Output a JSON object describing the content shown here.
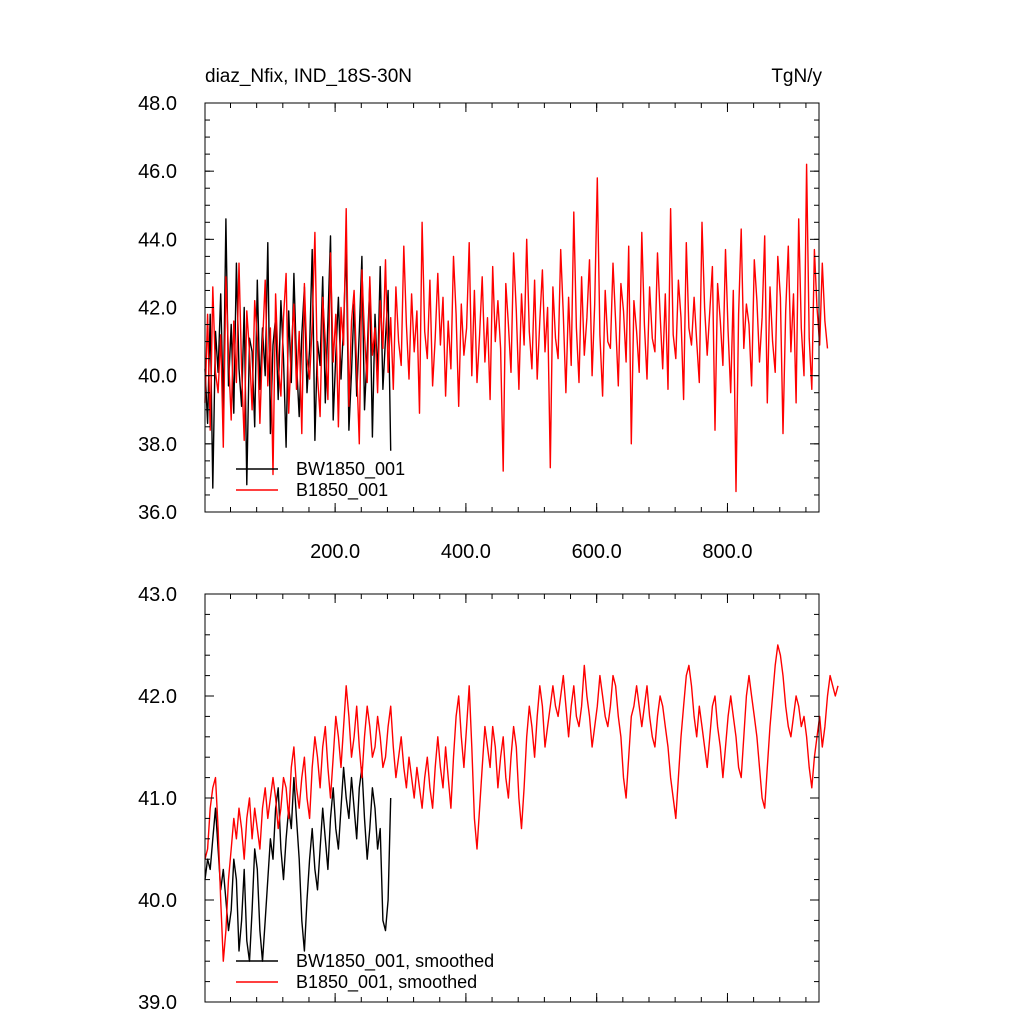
{
  "chart_data": [
    {
      "type": "line",
      "title_left": "diaz_Nfix, IND_18S-30N",
      "title_right": "TgN/y",
      "xlabel": "",
      "ylabel": "",
      "xlim": [
        1,
        940
      ],
      "ylim": [
        36.0,
        48.0
      ],
      "x_ticks": [
        200,
        400,
        600,
        800
      ],
      "x_tick_labels": [
        "200.0",
        "400.0",
        "600.0",
        "800.0"
      ],
      "y_ticks": [
        36,
        38,
        40,
        42,
        44,
        46,
        48
      ],
      "y_tick_labels": [
        "36.0",
        "38.0",
        "40.0",
        "42.0",
        "44.0",
        "46.0",
        "48.0"
      ],
      "legend_position": "bottom-left",
      "series": [
        {
          "name": "BW1850_001",
          "color": "#000000",
          "x_start": 1,
          "x_step": 4,
          "values": [
            40.2,
            38.6,
            41.8,
            36.7,
            41.3,
            40.1,
            42.4,
            39.0,
            44.6,
            39.7,
            41.5,
            38.9,
            43.3,
            40.2,
            39.1,
            42.0,
            36.8,
            41.1,
            40.7,
            38.5,
            42.8,
            39.6,
            41.4,
            40.0,
            43.9,
            38.3,
            40.9,
            41.7,
            39.3,
            42.2,
            40.5,
            37.9,
            41.9,
            39.8,
            43.0,
            40.4,
            38.8,
            41.2,
            42.6,
            39.5,
            40.8,
            43.7,
            38.1,
            41.0,
            40.3,
            42.9,
            39.2,
            41.6,
            44.1,
            38.7,
            40.6,
            42.3,
            39.9,
            41.5,
            43.8,
            38.4,
            40.1,
            42.1,
            39.4,
            41.3,
            43.5,
            39.0,
            40.7,
            42.7,
            38.2,
            41.8,
            40.0,
            43.2,
            39.6,
            41.1,
            42.5,
            37.8
          ]
        },
        {
          "name": "B1850_001",
          "color": "#ff0000",
          "x_start": 1,
          "x_step": 4,
          "values": [
            39.2,
            41.8,
            38.4,
            42.6,
            40.1,
            39.5,
            41.2,
            37.9,
            42.9,
            40.6,
            38.7,
            41.6,
            39.8,
            43.3,
            40.2,
            38.1,
            41.9,
            40.7,
            39.0,
            42.2,
            41.1,
            38.6,
            40.9,
            42.8,
            39.7,
            41.4,
            37.1,
            42.4,
            40.3,
            39.4,
            41.7,
            43.0,
            38.9,
            40.8,
            42.1,
            39.6,
            41.3,
            38.3,
            42.7,
            40.5,
            39.9,
            41.5,
            44.2,
            40.0,
            38.8,
            42.3,
            41.0,
            39.3,
            43.6,
            40.4,
            41.8,
            38.5,
            42.0,
            40.9,
            44.9,
            39.1,
            41.6,
            42.5,
            40.2,
            38.0,
            43.1,
            41.2,
            39.8,
            42.9,
            40.6,
            41.4,
            39.5,
            42.2,
            40.8,
            43.4,
            40.1,
            41.7,
            39.6,
            42.6,
            41.0,
            40.3,
            43.8,
            41.5,
            39.9,
            42.4,
            40.7,
            41.9,
            38.9,
            44.5,
            41.3,
            40.5,
            42.8,
            39.7,
            41.1,
            43.0,
            40.9,
            42.3,
            39.4,
            41.6,
            40.2,
            43.5,
            41.8,
            39.1,
            42.1,
            40.6,
            41.4,
            43.9,
            40.0,
            42.5,
            39.8,
            41.2,
            42.9,
            40.4,
            41.7,
            39.3,
            43.2,
            41.0,
            42.2,
            40.8,
            37.2,
            42.7,
            41.5,
            40.1,
            43.6,
            41.9,
            39.6,
            42.4,
            40.9,
            44.0,
            41.3,
            40.2,
            42.8,
            39.9,
            41.6,
            43.1,
            40.7,
            42.0,
            37.3,
            42.6,
            41.1,
            40.5,
            43.7,
            41.8,
            39.5,
            42.3,
            40.3,
            44.8,
            41.4,
            39.8,
            42.9,
            40.6,
            41.7,
            43.4,
            40.0,
            42.1,
            45.8,
            41.2,
            39.4,
            42.5,
            41.0,
            40.8,
            43.3,
            41.6,
            39.7,
            42.7,
            41.9,
            40.4,
            43.8,
            38.0,
            42.2,
            41.3,
            40.1,
            44.2,
            41.5,
            39.9,
            42.6,
            41.1,
            40.7,
            43.6,
            41.8,
            40.2,
            42.4,
            39.6,
            44.9,
            41.2,
            40.5,
            42.8,
            41.7,
            39.3,
            43.9,
            41.4,
            40.9,
            42.3,
            41.0,
            39.8,
            44.5,
            42.0,
            40.6,
            41.9,
            43.2,
            38.4,
            42.7,
            41.6,
            40.3,
            43.7,
            41.3,
            39.5,
            42.5,
            36.6,
            41.8,
            44.3,
            40.8,
            42.1,
            41.5,
            39.7,
            43.4,
            42.2,
            40.4,
            41.7,
            44.1,
            39.2,
            42.6,
            41.0,
            40.1,
            43.5,
            42.3,
            38.3,
            41.9,
            43.8,
            40.7,
            42.4,
            39.2,
            44.6,
            41.4,
            40.0,
            46.2,
            41.1,
            39.6,
            43.7,
            42.0,
            40.9,
            43.3,
            41.6,
            40.8
          ]
        }
      ]
    },
    {
      "type": "line",
      "title": "",
      "xlabel": "",
      "ylabel": "",
      "xlim": [
        1,
        940
      ],
      "ylim": [
        39.0,
        43.0
      ],
      "y_ticks": [
        39,
        40,
        41,
        42,
        43
      ],
      "y_tick_labels": [
        "39.0",
        "40.0",
        "41.0",
        "42.0",
        "43.0"
      ],
      "legend_position": "bottom-left",
      "series": [
        {
          "name": "BW1850_001, smoothed",
          "color": "#000000",
          "x_start": 1,
          "x_step": 4,
          "values": [
            40.2,
            40.4,
            40.3,
            40.6,
            40.9,
            40.5,
            40.1,
            40.3,
            40.0,
            39.7,
            39.9,
            40.4,
            40.2,
            39.5,
            39.8,
            40.3,
            39.6,
            39.4,
            39.9,
            40.5,
            40.3,
            39.7,
            39.4,
            39.8,
            40.2,
            40.6,
            40.4,
            40.9,
            41.1,
            40.5,
            40.2,
            40.6,
            40.9,
            40.7,
            41.2,
            40.8,
            40.4,
            39.8,
            39.5,
            40.0,
            40.4,
            40.7,
            40.3,
            40.1,
            40.5,
            40.9,
            40.6,
            40.3,
            40.8,
            41.1,
            40.7,
            40.5,
            40.9,
            41.3,
            41.0,
            40.8,
            41.2,
            40.9,
            40.6,
            41.1,
            41.3,
            40.8,
            40.4,
            40.7,
            41.1,
            40.9,
            40.5,
            40.7,
            39.8,
            39.7,
            40.0,
            41.0
          ]
        },
        {
          "name": "B1850_001, smoothed",
          "color": "#ff0000",
          "x_start": 1,
          "x_step": 4,
          "values": [
            40.4,
            40.5,
            40.9,
            41.1,
            41.2,
            40.7,
            40.0,
            39.4,
            39.7,
            40.2,
            40.5,
            40.8,
            40.6,
            40.9,
            40.7,
            40.4,
            40.8,
            41.0,
            40.6,
            40.9,
            40.7,
            40.5,
            40.9,
            41.1,
            40.8,
            41.0,
            41.2,
            41.0,
            40.7,
            40.9,
            41.2,
            41.1,
            40.8,
            41.3,
            41.5,
            41.1,
            40.9,
            41.2,
            41.4,
            41.0,
            40.8,
            41.3,
            41.6,
            41.4,
            41.1,
            41.5,
            41.7,
            41.3,
            41.0,
            41.4,
            41.8,
            41.6,
            41.3,
            41.7,
            42.1,
            41.8,
            41.4,
            41.6,
            41.9,
            41.5,
            41.2,
            41.6,
            41.9,
            41.7,
            41.4,
            41.5,
            41.8,
            41.6,
            41.3,
            41.4,
            41.7,
            41.9,
            41.5,
            41.2,
            41.4,
            41.6,
            41.3,
            41.1,
            41.4,
            41.2,
            41.0,
            41.3,
            41.1,
            40.9,
            41.2,
            41.4,
            41.1,
            40.9,
            41.3,
            41.6,
            41.3,
            41.1,
            41.5,
            41.2,
            40.9,
            41.4,
            41.8,
            42.0,
            41.6,
            41.3,
            41.7,
            42.1,
            41.5,
            40.8,
            40.5,
            40.9,
            41.3,
            41.7,
            41.5,
            41.3,
            41.7,
            41.5,
            41.1,
            41.4,
            41.6,
            41.2,
            41.0,
            41.4,
            41.7,
            41.5,
            41.0,
            40.7,
            41.1,
            41.6,
            41.9,
            41.7,
            41.4,
            41.8,
            42.1,
            41.9,
            41.5,
            41.7,
            41.9,
            42.1,
            41.9,
            41.8,
            42.0,
            42.2,
            41.9,
            41.6,
            41.9,
            42.1,
            41.8,
            41.7,
            41.9,
            42.3,
            42.0,
            41.8,
            41.5,
            41.7,
            41.9,
            42.2,
            42.0,
            41.8,
            41.7,
            41.9,
            42.2,
            42.1,
            41.8,
            41.6,
            41.2,
            41.0,
            41.4,
            41.8,
            41.9,
            42.1,
            41.9,
            41.7,
            41.9,
            42.1,
            41.8,
            41.6,
            41.5,
            41.8,
            42.0,
            41.9,
            41.7,
            41.5,
            41.2,
            41.0,
            40.8,
            41.2,
            41.6,
            41.9,
            42.2,
            42.3,
            42.1,
            41.8,
            41.6,
            41.9,
            41.7,
            41.5,
            41.3,
            41.6,
            41.9,
            42.0,
            41.7,
            41.5,
            41.2,
            41.5,
            41.8,
            42.0,
            41.8,
            41.6,
            41.3,
            41.2,
            41.6,
            42.0,
            42.2,
            42.0,
            41.8,
            41.6,
            41.3,
            41.0,
            40.9,
            41.3,
            41.7,
            42.0,
            42.3,
            42.5,
            42.4,
            42.2,
            41.9,
            41.7,
            41.6,
            41.8,
            42.0,
            41.9,
            41.7,
            41.8,
            41.6,
            41.3,
            41.1,
            41.4,
            41.6,
            41.8,
            41.5,
            41.7,
            42.0,
            42.2,
            42.1,
            42.0,
            42.1
          ]
        }
      ]
    }
  ]
}
